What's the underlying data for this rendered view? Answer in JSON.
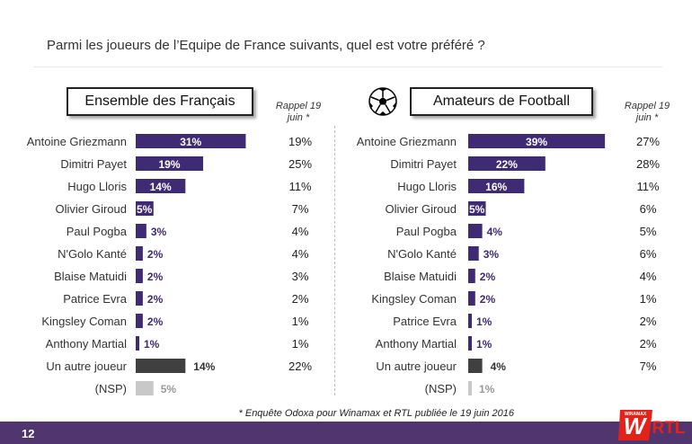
{
  "question": "Parmi les joueurs de l’Equipe de France suivants, quel est votre préféré ?",
  "rappel": "Rappel 19 juin *",
  "footnote": "* Enquête Odoxa pour Winamax et RTL publiée le 19 juin 2016",
  "page_number": "12",
  "logo": {
    "w": "W",
    "brand": "WINAMAX",
    "rtl": "RTL"
  },
  "colors": {
    "accent": "#3f2a74",
    "other": "#404040",
    "nsp": "#c8c8c8",
    "footer": "#50356f"
  },
  "chart_data": [
    {
      "type": "bar",
      "title": "Ensemble des Français",
      "categories": [
        "Antoine Griezmann",
        "Dimitri Payet",
        "Hugo Lloris",
        "Olivier Giroud",
        "Paul Pogba",
        "N'Golo Kanté",
        "Blaise Matuidi",
        "Patrice Evra",
        "Kingsley Coman",
        "Anthony Martial",
        "Un autre joueur",
        "(NSP)"
      ],
      "values": [
        31,
        19,
        14,
        5,
        3,
        2,
        2,
        2,
        2,
        1,
        14,
        5
      ],
      "labels": [
        "31%",
        "19%",
        "14%",
        "5%",
        "3%",
        "2%",
        "2%",
        "2%",
        "2%",
        "1%",
        "14%",
        "5%"
      ],
      "rappel": [
        "19%",
        "25%",
        "11%",
        "7%",
        "4%",
        "4%",
        "3%",
        "2%",
        "1%",
        "1%",
        "22%",
        ""
      ],
      "xlim": [
        0,
        40
      ]
    },
    {
      "type": "bar",
      "title": "Amateurs de Football",
      "categories": [
        "Antoine Griezmann",
        "Dimitri Payet",
        "Hugo Lloris",
        "Olivier Giroud",
        "Paul Pogba",
        "N'Golo Kanté",
        "Blaise Matuidi",
        "Kingsley Coman",
        "Patrice Evra",
        "Anthony Martial",
        "Un autre joueur",
        "(NSP)"
      ],
      "values": [
        39,
        22,
        16,
        5,
        4,
        3,
        2,
        2,
        1,
        1,
        4,
        1
      ],
      "labels": [
        "39%",
        "22%",
        "16%",
        "5%",
        "4%",
        "3%",
        "2%",
        "2%",
        "1%",
        "1%",
        "4%",
        "1%"
      ],
      "rappel": [
        "27%",
        "28%",
        "11%",
        "6%",
        "5%",
        "6%",
        "4%",
        "1%",
        "2%",
        "2%",
        "7%",
        ""
      ],
      "xlim": [
        0,
        40
      ]
    }
  ]
}
